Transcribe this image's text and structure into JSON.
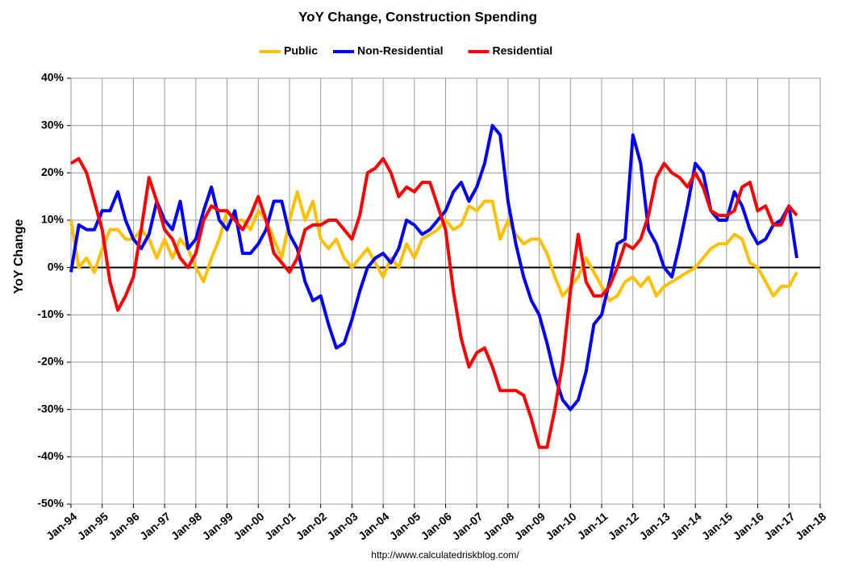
{
  "chart_data": {
    "type": "line",
    "title": "YoY Change,  Construction Spending",
    "y_label": "YoY Change",
    "source": "http://www.calculatedriskblog.com/",
    "x": [
      1994,
      1994.25,
      1994.5,
      1994.75,
      1995,
      1995.25,
      1995.5,
      1995.75,
      1996,
      1996.25,
      1996.5,
      1996.75,
      1997,
      1997.25,
      1997.5,
      1997.75,
      1998,
      1998.25,
      1998.5,
      1998.75,
      1999,
      1999.25,
      1999.5,
      1999.75,
      2000,
      2000.25,
      2000.5,
      2000.75,
      2001,
      2001.25,
      2001.5,
      2001.75,
      2002,
      2002.25,
      2002.5,
      2002.75,
      2003,
      2003.25,
      2003.5,
      2003.75,
      2004,
      2004.25,
      2004.5,
      2004.75,
      2005,
      2005.25,
      2005.5,
      2005.75,
      2006,
      2006.25,
      2006.5,
      2006.75,
      2007,
      2007.25,
      2007.5,
      2007.75,
      2008,
      2008.25,
      2008.5,
      2008.75,
      2009,
      2009.25,
      2009.5,
      2009.75,
      2010,
      2010.25,
      2010.5,
      2010.75,
      2011,
      2011.25,
      2011.5,
      2011.75,
      2012,
      2012.25,
      2012.5,
      2012.75,
      2013,
      2013.25,
      2013.5,
      2013.75,
      2014,
      2014.25,
      2014.5,
      2014.75,
      2015,
      2015.25,
      2015.5,
      2015.75,
      2016,
      2016.25,
      2016.5,
      2016.75,
      2017,
      2017.25
    ],
    "series": [
      {
        "name": "Public",
        "color": "#ffc000",
        "values": [
          10,
          0,
          2,
          -1,
          4,
          8,
          8,
          6,
          6,
          8,
          6,
          2,
          6,
          2,
          6,
          4,
          0,
          -3,
          2,
          6,
          12,
          10,
          10,
          8,
          12,
          10,
          6,
          2,
          10,
          16,
          10,
          14,
          6,
          4,
          6,
          2,
          0,
          2,
          4,
          1,
          -2,
          2,
          0,
          5,
          2,
          6,
          7,
          8,
          10,
          8,
          9,
          13,
          12,
          14,
          14,
          6,
          10,
          7,
          5,
          6,
          6,
          3,
          -2,
          -6,
          -4,
          -2,
          2,
          -1,
          -4,
          -7,
          -6,
          -3,
          -2,
          -4,
          -2,
          -6,
          -4,
          -3,
          -2,
          -1,
          0,
          2,
          4,
          5,
          5,
          7,
          6,
          1,
          0,
          -3,
          -6,
          -4,
          -4,
          -1
        ]
      },
      {
        "name": "Non-Residential",
        "color": "#0000ff",
        "values": [
          -1,
          9,
          8,
          8,
          12,
          12,
          16,
          10,
          6,
          4,
          7,
          14,
          10,
          8,
          14,
          4,
          6,
          12,
          17,
          10,
          8,
          12,
          3,
          3,
          5,
          8,
          14,
          14,
          7,
          4,
          -3,
          -7,
          -6,
          -12,
          -17,
          -16,
          -11,
          -5,
          0,
          2,
          3,
          1,
          4,
          10,
          9,
          7,
          8,
          10,
          12,
          16,
          18,
          14,
          17,
          22,
          30,
          28,
          14,
          5,
          -2,
          -7,
          -10,
          -16,
          -23,
          -28,
          -30,
          -28,
          -22,
          -12,
          -10,
          -3,
          5,
          6,
          28,
          22,
          8,
          5,
          0,
          -2,
          5,
          13,
          22,
          20,
          12,
          10,
          10,
          16,
          13,
          8,
          5,
          6,
          9,
          10,
          13,
          2
        ]
      },
      {
        "name": "Residential",
        "color": "#ff0000",
        "values": [
          22,
          23,
          20,
          14,
          8,
          -3,
          -9,
          -6,
          -2,
          8,
          19,
          14,
          8,
          6,
          2,
          0,
          3,
          10,
          13,
          12,
          12,
          10,
          8,
          11,
          15,
          10,
          3,
          1,
          -1,
          2,
          8,
          9,
          9,
          10,
          10,
          8,
          6,
          11,
          20,
          21,
          23,
          20,
          15,
          17,
          16,
          18,
          18,
          13,
          8,
          -5,
          -15,
          -21,
          -18,
          -17,
          -21,
          -26,
          -26,
          -26,
          -27,
          -32,
          -38,
          -38,
          -30,
          -20,
          -5,
          7,
          -3,
          -6,
          -6,
          -4,
          0,
          5,
          4,
          6,
          11,
          19,
          22,
          20,
          19,
          17,
          20,
          17,
          12,
          11,
          11,
          12,
          17,
          18,
          12,
          13,
          9,
          9,
          13,
          11
        ]
      }
    ],
    "xlim": [
      1994,
      2018
    ],
    "xticks": [
      {
        "value": 1994,
        "label": "Jan-94"
      },
      {
        "value": 1995,
        "label": "Jan-95"
      },
      {
        "value": 1996,
        "label": "Jan-96"
      },
      {
        "value": 1997,
        "label": "Jan-97"
      },
      {
        "value": 1998,
        "label": "Jan-98"
      },
      {
        "value": 1999,
        "label": "Jan-99"
      },
      {
        "value": 2000,
        "label": "Jan-00"
      },
      {
        "value": 2001,
        "label": "Jan-01"
      },
      {
        "value": 2002,
        "label": "Jan-02"
      },
      {
        "value": 2003,
        "label": "Jan-03"
      },
      {
        "value": 2004,
        "label": "Jan-04"
      },
      {
        "value": 2005,
        "label": "Jan-05"
      },
      {
        "value": 2006,
        "label": "Jan-06"
      },
      {
        "value": 2007,
        "label": "Jan-07"
      },
      {
        "value": 2008,
        "label": "Jan-08"
      },
      {
        "value": 2009,
        "label": "Jan-09"
      },
      {
        "value": 2010,
        "label": "Jan-10"
      },
      {
        "value": 2011,
        "label": "Jan-11"
      },
      {
        "value": 2012,
        "label": "Jan-12"
      },
      {
        "value": 2013,
        "label": "Jan-13"
      },
      {
        "value": 2014,
        "label": "Jan-14"
      },
      {
        "value": 2015,
        "label": "Jan-15"
      },
      {
        "value": 2016,
        "label": "Jan-16"
      },
      {
        "value": 2017,
        "label": "Jan-17"
      },
      {
        "value": 2018,
        "label": "Jan-18"
      }
    ],
    "ylim": [
      -50,
      40
    ],
    "yticks": [
      {
        "value": -50,
        "label": "-50%"
      },
      {
        "value": -40,
        "label": "-40%"
      },
      {
        "value": -30,
        "label": "-30%"
      },
      {
        "value": -20,
        "label": "-20%"
      },
      {
        "value": -10,
        "label": "-10%"
      },
      {
        "value": 0,
        "label": "0%"
      },
      {
        "value": 10,
        "label": "10%"
      },
      {
        "value": 20,
        "label": "20%"
      },
      {
        "value": 30,
        "label": "30%"
      },
      {
        "value": 40,
        "label": "40%"
      }
    ],
    "grid": true,
    "legend": "top"
  }
}
